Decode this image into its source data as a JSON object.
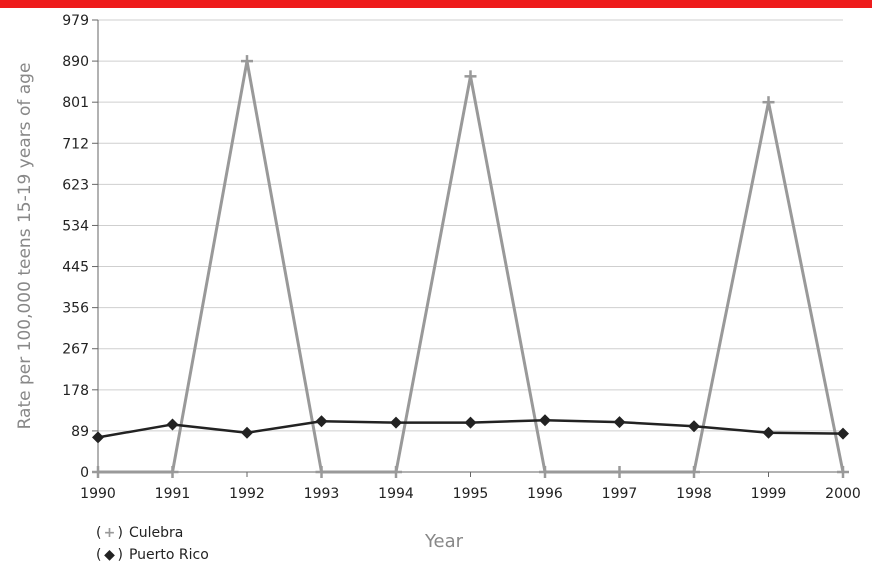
{
  "colors": {
    "top_bar": "#ee1c1c",
    "gridline": "#cfcfcf",
    "axis": "#666666"
  },
  "chart_data": {
    "type": "line",
    "title": "",
    "xlabel": "Year",
    "ylabel": "Rate per 100,000 teens 15-19 years of age",
    "x": [
      "1990",
      "1991",
      "1992",
      "1993",
      "1994",
      "1995",
      "1996",
      "1997",
      "1998",
      "1999",
      "2000"
    ],
    "yticks": [
      "0",
      "89",
      "178",
      "267",
      "356",
      "445",
      "534",
      "623",
      "712",
      "801",
      "890",
      "979"
    ],
    "ylim": [
      0,
      979
    ],
    "grid": true,
    "legend_position": "bottom-left",
    "series": [
      {
        "name": "Culebra",
        "color": "#999999",
        "marker": "plus",
        "marker_symbol": "+",
        "values": [
          0,
          0,
          890,
          0,
          0,
          857,
          0,
          0,
          0,
          801,
          0
        ]
      },
      {
        "name": "Puerto Rico",
        "color": "#222222",
        "marker": "diamond",
        "marker_symbol": "◆",
        "values": [
          75,
          103,
          85,
          110,
          107,
          107,
          112,
          108,
          99,
          85,
          83
        ]
      }
    ]
  }
}
